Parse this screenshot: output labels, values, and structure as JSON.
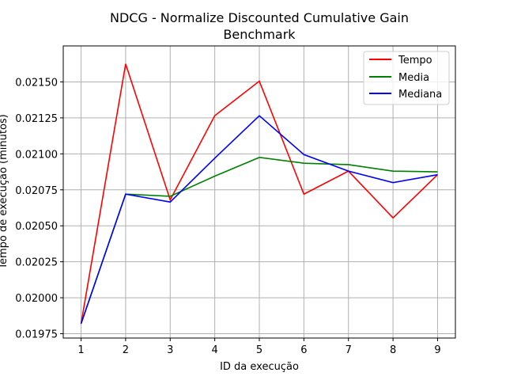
{
  "chart_data": {
    "type": "line",
    "title_lines": [
      "NDCG - Normalize Discounted Cumulative Gain",
      "Benchmark"
    ],
    "xlabel": "ID da execução",
    "ylabel": "Tempo de execução (minutos)",
    "x": [
      1,
      2,
      3,
      4,
      5,
      6,
      7,
      8,
      9
    ],
    "xlim": [
      0.6,
      9.4
    ],
    "ylim": [
      0.01972,
      0.02175
    ],
    "yticks": [
      0.01975,
      0.02,
      0.02025,
      0.0205,
      0.02075,
      0.021,
      0.02125,
      0.0215
    ],
    "ytick_labels": [
      "0.01975",
      "0.02000",
      "0.02025",
      "0.02050",
      "0.02075",
      "0.02100",
      "0.02125",
      "0.02150"
    ],
    "xtick_labels": [
      "1",
      "2",
      "3",
      "4",
      "5",
      "6",
      "7",
      "8",
      "9"
    ],
    "grid": true,
    "legend_position": "top-right",
    "series": [
      {
        "name": "Tempo",
        "color": "#ff0000",
        "values": [
          0.01982,
          0.021625,
          0.02068,
          0.021265,
          0.021505,
          0.02072,
          0.02088,
          0.020555,
          0.020855
        ]
      },
      {
        "name": "Media",
        "color": "#008000",
        "values": [
          0.01982,
          0.02072,
          0.020705,
          0.020845,
          0.020975,
          0.020935,
          0.020925,
          0.02088,
          0.020875
        ]
      },
      {
        "name": "Mediana",
        "color": "#0000ff",
        "values": [
          0.01982,
          0.02072,
          0.020665,
          0.02097,
          0.021265,
          0.020995,
          0.02088,
          0.0208,
          0.020855
        ]
      }
    ]
  }
}
